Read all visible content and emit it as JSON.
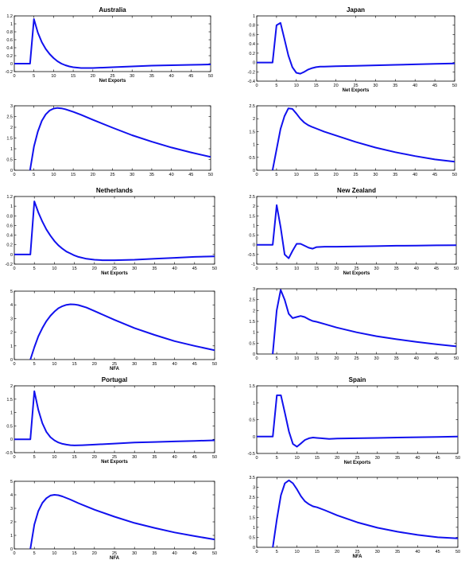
{
  "colors": {
    "line": "#1111ee",
    "axis": "#000000",
    "background": "#ffffff"
  },
  "chart_data": [
    {
      "type": "line",
      "title": "Australia",
      "xlabel": "Net Exports",
      "ylabel": "",
      "xlim": [
        0,
        50
      ],
      "ylim": [
        -0.2,
        1.2
      ],
      "grid": false,
      "xticks": [
        0,
        5,
        10,
        15,
        20,
        25,
        30,
        35,
        40,
        45,
        50
      ],
      "xtick_labels": [
        "0",
        "5",
        "10",
        "15",
        "20",
        "25",
        "30",
        "35",
        "40",
        "45",
        "50"
      ],
      "yticks": [
        -0.2,
        0,
        0.2,
        0.4,
        0.6,
        0.8,
        1,
        1.2
      ],
      "ytick_labels": [
        "-0.2",
        "0",
        "0.2",
        "0.4",
        "0.6",
        "0.8",
        "1",
        "1.2"
      ],
      "series": [
        {
          "x": [
            0,
            4,
            5,
            6,
            7,
            8,
            9,
            10,
            11,
            12,
            13,
            14,
            15,
            16,
            17,
            18,
            20,
            25,
            30,
            35,
            40,
            45,
            50
          ],
          "y": [
            0,
            0,
            1.12,
            0.78,
            0.54,
            0.37,
            0.24,
            0.14,
            0.06,
            0.0,
            -0.04,
            -0.07,
            -0.09,
            -0.1,
            -0.11,
            -0.11,
            -0.11,
            -0.09,
            -0.07,
            -0.05,
            -0.04,
            -0.03,
            -0.02
          ]
        }
      ]
    },
    {
      "type": "line",
      "title": "",
      "xlabel": "",
      "ylabel": "",
      "xlim": [
        0,
        50
      ],
      "ylim": [
        0,
        3
      ],
      "grid": false,
      "xticks": [
        0,
        5,
        10,
        15,
        20,
        25,
        30,
        35,
        40,
        45,
        50
      ],
      "xtick_labels": [
        "0",
        "5",
        "10",
        "15",
        "20",
        "25",
        "30",
        "35",
        "40",
        "45",
        "50"
      ],
      "yticks": [
        0,
        0.5,
        1,
        1.5,
        2,
        2.5,
        3
      ],
      "ytick_labels": [
        "0",
        "0.5",
        "1",
        "1.5",
        "2",
        "2.5",
        "3"
      ],
      "series": [
        {
          "x": [
            4,
            5,
            6,
            7,
            8,
            9,
            10,
            11,
            12,
            13,
            15,
            17,
            20,
            25,
            30,
            35,
            40,
            45,
            50
          ],
          "y": [
            0,
            1.1,
            1.8,
            2.3,
            2.6,
            2.78,
            2.87,
            2.9,
            2.88,
            2.84,
            2.72,
            2.58,
            2.35,
            1.98,
            1.63,
            1.33,
            1.06,
            0.83,
            0.62
          ]
        }
      ]
    },
    {
      "type": "line",
      "title": "Japan",
      "xlabel": "Net Exports",
      "ylabel": "",
      "xlim": [
        0,
        50
      ],
      "ylim": [
        -0.4,
        1
      ],
      "grid": false,
      "xticks": [
        0,
        5,
        10,
        15,
        20,
        25,
        30,
        35,
        40,
        45,
        50
      ],
      "xtick_labels": [
        "0",
        "5",
        "10",
        "15",
        "20",
        "25",
        "30",
        "35",
        "40",
        "45",
        "50"
      ],
      "yticks": [
        -0.4,
        -0.2,
        0,
        0.2,
        0.4,
        0.6,
        0.8,
        1
      ],
      "ytick_labels": [
        "-0.4",
        "-0.2",
        "0",
        "0.2",
        "0.4",
        "0.6",
        "0.8",
        "1"
      ],
      "series": [
        {
          "x": [
            0,
            4,
            5,
            6,
            7,
            8,
            9,
            10,
            11,
            12,
            13,
            14,
            15,
            16,
            17,
            20,
            25,
            30,
            35,
            40,
            45,
            50
          ],
          "y": [
            0,
            0,
            0.8,
            0.85,
            0.5,
            0.15,
            -0.1,
            -0.22,
            -0.24,
            -0.2,
            -0.15,
            -0.12,
            -0.1,
            -0.09,
            -0.09,
            -0.08,
            -0.07,
            -0.06,
            -0.05,
            -0.04,
            -0.03,
            -0.02
          ]
        }
      ]
    },
    {
      "type": "line",
      "title": "",
      "xlabel": "",
      "ylabel": "",
      "xlim": [
        0,
        50
      ],
      "ylim": [
        0,
        2.5
      ],
      "grid": false,
      "xticks": [
        0,
        5,
        10,
        15,
        20,
        25,
        30,
        35,
        40,
        45,
        50
      ],
      "xtick_labels": [
        "0",
        "5",
        "10",
        "15",
        "20",
        "25",
        "30",
        "35",
        "40",
        "45",
        "50"
      ],
      "yticks": [
        0,
        0.5,
        1,
        1.5,
        2,
        2.5
      ],
      "ytick_labels": [
        "0",
        "0.5",
        "1",
        "1.5",
        "2",
        "2.5"
      ],
      "series": [
        {
          "x": [
            4,
            5,
            6,
            7,
            8,
            9,
            10,
            11,
            12,
            13,
            14,
            15,
            17,
            20,
            25,
            30,
            35,
            40,
            45,
            50
          ],
          "y": [
            0,
            0.8,
            1.6,
            2.1,
            2.4,
            2.38,
            2.2,
            2.0,
            1.85,
            1.75,
            1.68,
            1.62,
            1.5,
            1.35,
            1.1,
            0.88,
            0.7,
            0.55,
            0.42,
            0.33
          ]
        }
      ]
    },
    {
      "type": "line",
      "title": "Netherlands",
      "xlabel": "Net Exports",
      "ylabel": "",
      "xlim": [
        0,
        50
      ],
      "ylim": [
        -0.2,
        1.2
      ],
      "grid": false,
      "xticks": [
        0,
        5,
        10,
        15,
        20,
        25,
        30,
        35,
        40,
        45,
        50
      ],
      "xtick_labels": [
        "0",
        "5",
        "10",
        "15",
        "20",
        "25",
        "30",
        "35",
        "40",
        "45",
        "50"
      ],
      "yticks": [
        -0.2,
        0,
        0.2,
        0.4,
        0.6,
        0.8,
        1,
        1.2
      ],
      "ytick_labels": [
        "-0.2",
        "0",
        "0.2",
        "0.4",
        "0.6",
        "0.8",
        "1",
        "1.2"
      ],
      "series": [
        {
          "x": [
            0,
            4,
            5,
            6,
            7,
            8,
            9,
            10,
            11,
            12,
            13,
            14,
            15,
            16,
            18,
            20,
            22,
            25,
            30,
            35,
            40,
            45,
            50
          ],
          "y": [
            0,
            0,
            1.1,
            0.87,
            0.68,
            0.52,
            0.39,
            0.28,
            0.19,
            0.12,
            0.06,
            0.02,
            -0.02,
            -0.05,
            -0.09,
            -0.11,
            -0.12,
            -0.12,
            -0.11,
            -0.09,
            -0.07,
            -0.05,
            -0.04
          ]
        }
      ]
    },
    {
      "type": "line",
      "title": "",
      "xlabel": "NFA",
      "ylabel": "",
      "xlim": [
        0,
        50
      ],
      "ylim": [
        0,
        5
      ],
      "grid": false,
      "xticks": [
        0,
        5,
        10,
        15,
        20,
        25,
        30,
        35,
        40,
        45,
        50
      ],
      "xtick_labels": [
        "0",
        "5",
        "10",
        "15",
        "20",
        "25",
        "30",
        "35",
        "40",
        "45",
        "50"
      ],
      "yticks": [
        0,
        1,
        2,
        3,
        4,
        5
      ],
      "ytick_labels": [
        "0",
        "1",
        "2",
        "3",
        "4",
        "5"
      ],
      "series": [
        {
          "x": [
            4,
            5,
            6,
            7,
            8,
            9,
            10,
            11,
            12,
            13,
            14,
            15,
            16,
            18,
            20,
            25,
            30,
            35,
            40,
            45,
            50
          ],
          "y": [
            0,
            0.9,
            1.7,
            2.3,
            2.8,
            3.2,
            3.5,
            3.75,
            3.9,
            4.0,
            4.04,
            4.03,
            3.98,
            3.8,
            3.55,
            2.9,
            2.3,
            1.8,
            1.35,
            1.0,
            0.68
          ]
        }
      ]
    },
    {
      "type": "line",
      "title": "New Zealand",
      "xlabel": "Net Exports",
      "ylabel": "",
      "xlim": [
        0,
        50
      ],
      "ylim": [
        -1,
        2.5
      ],
      "grid": false,
      "xticks": [
        0,
        5,
        10,
        15,
        20,
        25,
        30,
        35,
        40,
        45,
        50
      ],
      "xtick_labels": [
        "0",
        "5",
        "10",
        "15",
        "20",
        "25",
        "30",
        "35",
        "40",
        "45",
        "50"
      ],
      "yticks": [
        -1,
        -0.5,
        0,
        0.5,
        1,
        1.5,
        2,
        2.5
      ],
      "ytick_labels": [
        "-1",
        "-0.5",
        "0",
        "0.5",
        "1",
        "1.5",
        "2",
        "2.5"
      ],
      "series": [
        {
          "x": [
            0,
            4,
            5,
            6,
            7,
            8,
            9,
            10,
            11,
            12,
            13,
            14,
            15,
            17,
            20,
            25,
            30,
            35,
            40,
            45,
            50
          ],
          "y": [
            0,
            0,
            2.05,
            0.9,
            -0.5,
            -0.7,
            -0.3,
            0.05,
            0.05,
            -0.05,
            -0.15,
            -0.2,
            -0.12,
            -0.1,
            -0.1,
            -0.08,
            -0.07,
            -0.05,
            -0.04,
            -0.03,
            -0.02
          ]
        }
      ]
    },
    {
      "type": "line",
      "title": "",
      "xlabel": "",
      "ylabel": "",
      "xlim": [
        0,
        50
      ],
      "ylim": [
        0,
        3
      ],
      "grid": false,
      "xticks": [
        0,
        5,
        10,
        15,
        20,
        25,
        30,
        35,
        40,
        45,
        50
      ],
      "xtick_labels": [
        "0",
        "5",
        "10",
        "15",
        "20",
        "25",
        "30",
        "35",
        "40",
        "45",
        "50"
      ],
      "yticks": [
        0,
        0.5,
        1,
        1.5,
        2,
        2.5,
        3
      ],
      "ytick_labels": [
        "0",
        "0.5",
        "1",
        "1.5",
        "2",
        "2.5",
        "3"
      ],
      "series": [
        {
          "x": [
            4,
            5,
            6,
            7,
            8,
            9,
            10,
            11,
            12,
            13,
            14,
            15,
            17,
            20,
            25,
            30,
            35,
            40,
            45,
            50
          ],
          "y": [
            0,
            2.0,
            2.95,
            2.5,
            1.85,
            1.65,
            1.7,
            1.75,
            1.7,
            1.6,
            1.52,
            1.48,
            1.38,
            1.22,
            1.0,
            0.82,
            0.68,
            0.56,
            0.45,
            0.35
          ]
        }
      ]
    },
    {
      "type": "line",
      "title": "Portugal",
      "xlabel": "Net Exports",
      "ylabel": "",
      "xlim": [
        0,
        50
      ],
      "ylim": [
        -0.5,
        2
      ],
      "grid": false,
      "xticks": [
        0,
        5,
        10,
        15,
        20,
        25,
        30,
        35,
        40,
        45,
        50
      ],
      "xtick_labels": [
        "0",
        "5",
        "10",
        "15",
        "20",
        "25",
        "30",
        "35",
        "40",
        "45",
        "50"
      ],
      "yticks": [
        -0.5,
        0,
        0.5,
        1,
        1.5,
        2
      ],
      "ytick_labels": [
        "-0.5",
        "0",
        "0.5",
        "1",
        "1.5",
        "2"
      ],
      "series": [
        {
          "x": [
            0,
            4,
            5,
            6,
            7,
            8,
            9,
            10,
            11,
            12,
            13,
            14,
            15,
            17,
            20,
            25,
            30,
            35,
            40,
            45,
            50
          ],
          "y": [
            0,
            0,
            1.8,
            1.1,
            0.6,
            0.28,
            0.08,
            -0.04,
            -0.12,
            -0.17,
            -0.2,
            -0.22,
            -0.23,
            -0.22,
            -0.2,
            -0.16,
            -0.12,
            -0.1,
            -0.08,
            -0.06,
            -0.04
          ]
        }
      ]
    },
    {
      "type": "line",
      "title": "",
      "xlabel": "NFA",
      "ylabel": "",
      "xlim": [
        0,
        50
      ],
      "ylim": [
        0,
        5
      ],
      "grid": false,
      "xticks": [
        0,
        5,
        10,
        15,
        20,
        25,
        30,
        35,
        40,
        45,
        50
      ],
      "xtick_labels": [
        "0",
        "5",
        "10",
        "15",
        "20",
        "25",
        "30",
        "35",
        "40",
        "45",
        "50"
      ],
      "yticks": [
        0,
        1,
        2,
        3,
        4,
        5
      ],
      "ytick_labels": [
        "0",
        "1",
        "2",
        "3",
        "4",
        "5"
      ],
      "series": [
        {
          "x": [
            4,
            5,
            6,
            7,
            8,
            9,
            10,
            11,
            12,
            14,
            16,
            20,
            25,
            30,
            35,
            40,
            45,
            50
          ],
          "y": [
            0,
            1.8,
            2.8,
            3.4,
            3.75,
            3.95,
            4.0,
            3.97,
            3.88,
            3.65,
            3.38,
            2.9,
            2.38,
            1.92,
            1.55,
            1.22,
            0.95,
            0.7
          ]
        }
      ]
    },
    {
      "type": "line",
      "title": "Spain",
      "xlabel": "Net Exports",
      "ylabel": "",
      "xlim": [
        0,
        50
      ],
      "ylim": [
        -0.5,
        1.5
      ],
      "grid": false,
      "xticks": [
        0,
        5,
        10,
        15,
        20,
        25,
        30,
        35,
        40,
        45,
        50
      ],
      "xtick_labels": [
        "0",
        "5",
        "10",
        "15",
        "20",
        "25",
        "30",
        "35",
        "40",
        "45",
        "50"
      ],
      "yticks": [
        -0.5,
        0,
        0.5,
        1,
        1.5
      ],
      "ytick_labels": [
        "-0.5",
        "0",
        "0.5",
        "1",
        "1.5"
      ],
      "series": [
        {
          "x": [
            0,
            4,
            5,
            6,
            7,
            8,
            9,
            10,
            11,
            12,
            13,
            14,
            15,
            16,
            18,
            20,
            25,
            30,
            35,
            40,
            45,
            50
          ],
          "y": [
            0,
            0,
            1.22,
            1.22,
            0.7,
            0.15,
            -0.22,
            -0.3,
            -0.2,
            -0.1,
            -0.05,
            -0.03,
            -0.04,
            -0.05,
            -0.07,
            -0.06,
            -0.05,
            -0.04,
            -0.03,
            -0.02,
            -0.01,
            0.0
          ]
        }
      ]
    },
    {
      "type": "line",
      "title": "",
      "xlabel": "NFA",
      "ylabel": "",
      "xlim": [
        0,
        50
      ],
      "ylim": [
        0,
        3.5
      ],
      "grid": false,
      "xticks": [
        0,
        5,
        10,
        15,
        20,
        25,
        30,
        35,
        40,
        45,
        50
      ],
      "xtick_labels": [
        "0",
        "5",
        "10",
        "15",
        "20",
        "25",
        "30",
        "35",
        "40",
        "45",
        "50"
      ],
      "yticks": [
        0,
        0.5,
        1,
        1.5,
        2,
        2.5,
        3,
        3.5
      ],
      "ytick_labels": [
        "0",
        "0.5",
        "1",
        "1.5",
        "2",
        "2.5",
        "3",
        "3.5"
      ],
      "series": [
        {
          "x": [
            4,
            5,
            6,
            7,
            8,
            9,
            10,
            11,
            12,
            13,
            14,
            15,
            17,
            20,
            25,
            30,
            35,
            40,
            45,
            50
          ],
          "y": [
            0,
            1.4,
            2.6,
            3.2,
            3.35,
            3.2,
            2.9,
            2.55,
            2.3,
            2.15,
            2.05,
            2.0,
            1.85,
            1.6,
            1.25,
            0.98,
            0.78,
            0.62,
            0.5,
            0.45
          ]
        }
      ]
    }
  ]
}
